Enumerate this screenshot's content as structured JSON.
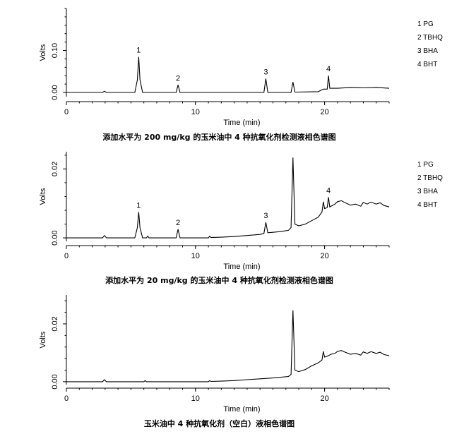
{
  "chart_data": [
    {
      "type": "line",
      "xlabel": "Time (min)",
      "ylabel": "Volts",
      "xlim": [
        0,
        25
      ],
      "ylim": [
        -0.01,
        0.2
      ],
      "xticks": [
        0,
        10,
        20
      ],
      "yticks": [
        0.0,
        0.1
      ],
      "ytick_labels": [
        "0.00",
        "0.10"
      ],
      "grid": false,
      "legend_position": "right",
      "legend": [
        "1 PG",
        "2 TBHQ",
        "3 BHA",
        "4 BHT"
      ],
      "caption": "添加水平为 200 mg/kg 的玉米油中 4 种抗氧化剂检测液相色谱图",
      "peaks": [
        {
          "label": "1",
          "x": 5.6,
          "height": 0.085
        },
        {
          "label": "2",
          "x": 8.65,
          "height": 0.018
        },
        {
          "label": "3",
          "x": 15.45,
          "height": 0.033
        },
        {
          "label": "4",
          "x": 20.3,
          "height": 0.04
        }
      ],
      "series": [
        {
          "x": [
            0,
            2.8,
            2.95,
            3.1,
            5.3,
            5.5,
            5.6,
            5.7,
            5.9,
            8.5,
            8.65,
            8.8,
            11,
            12,
            13,
            15.3,
            15.45,
            15.6,
            17.4,
            17.55,
            17.7,
            19.5,
            19.9,
            20.2,
            20.3,
            20.4,
            21,
            22,
            23,
            24,
            25
          ],
          "y": [
            0.0,
            0.0,
            0.003,
            0.0,
            0.0,
            0.03,
            0.085,
            0.03,
            0.0,
            0.0,
            0.018,
            0.0,
            0.0,
            0.0,
            0.0,
            0.0,
            0.033,
            0.0,
            0.0,
            0.025,
            0.001,
            0.002,
            0.008,
            0.008,
            0.04,
            0.01,
            0.01,
            0.012,
            0.011,
            0.012,
            0.01
          ]
        }
      ]
    },
    {
      "type": "line",
      "xlabel": "Time (min)",
      "ylabel": "Volts",
      "xlim": [
        0,
        25
      ],
      "ylim": [
        -0.001,
        0.025
      ],
      "xticks": [
        0,
        10,
        20
      ],
      "yticks": [
        0.0,
        0.02
      ],
      "ytick_labels": [
        "0.00",
        "0.02"
      ],
      "grid": false,
      "legend_position": "right",
      "legend": [
        "1 PG",
        "2 TBHQ",
        "3 BHA",
        "4 BHT"
      ],
      "caption": "添加水平为 20 mg/kg 的玉米油中 4 种抗氧化剂检测液相色谱图",
      "peaks": [
        {
          "label": "1",
          "x": 5.6,
          "height": 0.0075
        },
        {
          "label": "2",
          "x": 8.65,
          "height": 0.0025
        },
        {
          "label": "3",
          "x": 15.45,
          "height": 0.0045
        },
        {
          "label": "4",
          "x": 20.3,
          "height": 0.0118
        }
      ],
      "series": [
        {
          "x": [
            0,
            2.8,
            2.95,
            3.1,
            5.3,
            5.5,
            5.6,
            5.7,
            5.9,
            6.2,
            6.3,
            6.4,
            8.5,
            8.65,
            8.8,
            11,
            11.1,
            11.2,
            12,
            13,
            14,
            15,
            15.3,
            15.45,
            15.6,
            16.5,
            17.2,
            17.4,
            17.55,
            17.7,
            18,
            18.5,
            19,
            19.5,
            19.8,
            19.9,
            20.0,
            20.2,
            20.3,
            20.4,
            20.8,
            21.0,
            21.3,
            21.6,
            22,
            22.4,
            22.8,
            23,
            23.3,
            23.6,
            24,
            24.3,
            24.6,
            25
          ],
          "y": [
            0.0,
            0.0,
            0.0007,
            0.0,
            0.0,
            0.003,
            0.0075,
            0.003,
            0.0,
            0.0,
            0.0005,
            0.0,
            0.0,
            0.0025,
            0.0,
            0.0,
            0.0005,
            0.0001,
            0.0002,
            0.0004,
            0.0007,
            0.001,
            0.0013,
            0.0045,
            0.0015,
            0.0018,
            0.0022,
            0.003,
            0.0233,
            0.004,
            0.0035,
            0.004,
            0.005,
            0.006,
            0.0075,
            0.0105,
            0.0085,
            0.0088,
            0.0118,
            0.009,
            0.0098,
            0.0105,
            0.0108,
            0.0102,
            0.0095,
            0.0098,
            0.0092,
            0.0103,
            0.0098,
            0.0104,
            0.0098,
            0.0102,
            0.0094,
            0.009
          ]
        }
      ]
    },
    {
      "type": "line",
      "xlabel": "Time (min)",
      "ylabel": "Volts",
      "xlim": [
        0,
        25
      ],
      "ylim": [
        -0.001,
        0.03
      ],
      "xticks": [
        0,
        10,
        20
      ],
      "yticks": [
        0.0,
        0.02
      ],
      "ytick_labels": [
        "0.00",
        "0.02"
      ],
      "grid": false,
      "legend": [],
      "caption": "玉米油中 4 种抗氧化剂（空白）液相色谱图",
      "peaks": [],
      "series": [
        {
          "x": [
            0,
            2.8,
            2.95,
            3.1,
            6.0,
            6.1,
            6.2,
            11,
            11.1,
            11.2,
            12,
            13,
            14,
            15,
            16,
            17.2,
            17.4,
            17.55,
            17.7,
            18,
            18.5,
            19,
            19.5,
            19.8,
            19.9,
            20.0,
            20.2,
            20.5,
            20.8,
            21.0,
            21.3,
            21.6,
            22,
            22.4,
            22.8,
            23,
            23.3,
            23.6,
            24,
            24.3,
            24.6,
            25
          ],
          "y": [
            0.0,
            0.0,
            0.0007,
            0.0,
            0.0,
            0.0004,
            0.0,
            0.0,
            0.0004,
            0.0001,
            0.0002,
            0.0004,
            0.0007,
            0.001,
            0.0013,
            0.0018,
            0.0025,
            0.0247,
            0.004,
            0.0035,
            0.0042,
            0.0055,
            0.0065,
            0.0075,
            0.0105,
            0.0085,
            0.0088,
            0.0095,
            0.0098,
            0.0105,
            0.0108,
            0.0102,
            0.0095,
            0.0098,
            0.0092,
            0.0103,
            0.0098,
            0.0104,
            0.0098,
            0.0102,
            0.0094,
            0.009
          ]
        }
      ]
    }
  ]
}
